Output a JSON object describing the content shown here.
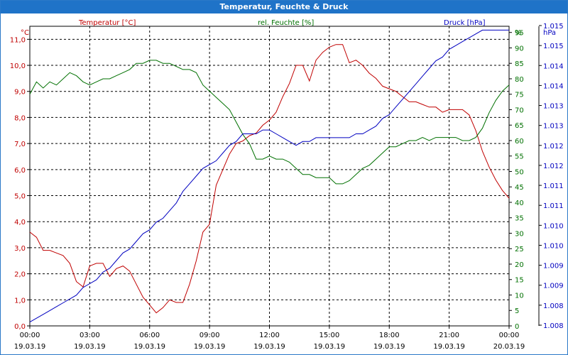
{
  "window": {
    "title": "Temperatur, Feuchte & Druck"
  },
  "colors": {
    "temperature": "#c00000",
    "humidity": "#007000",
    "pressure": "#0000c0",
    "grid": "#000000",
    "titlebar": "#1f73c8"
  },
  "chart_data": {
    "type": "line",
    "grid": true,
    "x_ticks": [
      {
        "time": "00:00",
        "date": "19.03.19"
      },
      {
        "time": "03:00",
        "date": "19.03.19"
      },
      {
        "time": "06:00",
        "date": "19.03.19"
      },
      {
        "time": "09:00",
        "date": "19.03.19"
      },
      {
        "time": "12:00",
        "date": "19.03.19"
      },
      {
        "time": "15:00",
        "date": "19.03.19"
      },
      {
        "time": "18:00",
        "date": "19.03.19"
      },
      {
        "time": "21:00",
        "date": "19.03.19"
      },
      {
        "time": "00:00",
        "date": "20.03.19"
      }
    ],
    "xlim": [
      "19.03.19 00:00",
      "20.03.19 00:00"
    ],
    "axes": {
      "temperature": {
        "unit": "°C",
        "ylim": [
          0,
          11.5
        ],
        "ticks": [
          "0,0",
          "1,0",
          "2,0",
          "3,0",
          "4,0",
          "5,0",
          "6,0",
          "7,0",
          "8,0",
          "9,0",
          "10,0",
          "11,0"
        ]
      },
      "humidity": {
        "unit": "%",
        "ylim": [
          0,
          97
        ],
        "ticks": [
          "0",
          "5",
          "10",
          "15",
          "20",
          "25",
          "30",
          "35",
          "40",
          "45",
          "50",
          "55",
          "60",
          "65",
          "70",
          "75",
          "80",
          "85",
          "90",
          "95"
        ]
      },
      "pressure": {
        "unit": "hPa",
        "ylim": [
          1007.8,
          1015.6
        ],
        "ticks": [
          "1.008",
          "1.008",
          "1.009",
          "1.009",
          "1.010",
          "1.010",
          "1.011",
          "1.011",
          "1.012",
          "1.012",
          "1.013",
          "1.013",
          "1.014",
          "1.014",
          "1.015",
          "1.015"
        ]
      }
    },
    "series": [
      {
        "name": "Temperatur [°C]",
        "axis": "temperature",
        "x": [
          "19.03.19 00:00",
          "19.03.19 00:20",
          "19.03.19 00:40",
          "19.03.19 01:00",
          "19.03.19 01:20",
          "19.03.19 01:40",
          "19.03.19 02:00",
          "19.03.19 02:20",
          "19.03.19 02:40",
          "19.03.19 03:00",
          "19.03.19 03:20",
          "19.03.19 03:40",
          "19.03.19 04:00",
          "19.03.19 04:20",
          "19.03.19 04:40",
          "19.03.19 05:00",
          "19.03.19 05:20",
          "19.03.19 05:40",
          "19.03.19 06:00",
          "19.03.19 06:20",
          "19.03.19 06:40",
          "19.03.19 07:00",
          "19.03.19 07:20",
          "19.03.19 07:40",
          "19.03.19 08:00",
          "19.03.19 08:20",
          "19.03.19 08:40",
          "19.03.19 09:00",
          "19.03.19 09:20",
          "19.03.19 09:40",
          "19.03.19 10:00",
          "19.03.19 10:20",
          "19.03.19 10:40",
          "19.03.19 11:00",
          "19.03.19 11:20",
          "19.03.19 11:40",
          "19.03.19 12:00",
          "19.03.19 12:20",
          "19.03.19 12:40",
          "19.03.19 13:00",
          "19.03.19 13:20",
          "19.03.19 13:40",
          "19.03.19 14:00",
          "19.03.19 14:20",
          "19.03.19 14:40",
          "19.03.19 15:00",
          "19.03.19 15:20",
          "19.03.19 15:40",
          "19.03.19 16:00",
          "19.03.19 16:20",
          "19.03.19 16:40",
          "19.03.19 17:00",
          "19.03.19 17:20",
          "19.03.19 17:40",
          "19.03.19 18:00",
          "19.03.19 18:20",
          "19.03.19 18:40",
          "19.03.19 19:00",
          "19.03.19 19:20",
          "19.03.19 19:40",
          "19.03.19 20:00",
          "19.03.19 20:20",
          "19.03.19 20:40",
          "19.03.19 21:00",
          "19.03.19 21:20",
          "19.03.19 21:40",
          "19.03.19 22:00",
          "19.03.19 22:20",
          "19.03.19 22:40",
          "19.03.19 23:00",
          "19.03.19 23:20",
          "19.03.19 23:40",
          "20.03.19 00:00"
        ],
        "values": [
          3.6,
          3.4,
          2.9,
          2.9,
          2.8,
          2.7,
          2.4,
          1.7,
          1.5,
          2.3,
          2.4,
          2.4,
          1.9,
          2.2,
          2.3,
          2.1,
          1.6,
          1.1,
          0.8,
          0.5,
          0.7,
          1.0,
          0.9,
          0.9,
          1.6,
          2.5,
          3.6,
          3.9,
          5.4,
          6.0,
          6.6,
          7.0,
          7.1,
          7.3,
          7.4,
          7.7,
          7.9,
          8.2,
          8.8,
          9.3,
          10.0,
          10.0,
          9.4,
          10.2,
          10.5,
          10.7,
          10.8,
          10.8,
          10.1,
          10.2,
          10.0,
          9.7,
          9.5,
          9.2,
          9.1,
          9.0,
          8.8,
          8.6,
          8.6,
          8.5,
          8.4,
          8.4,
          8.2,
          8.3,
          8.3,
          8.3,
          8.1,
          7.5,
          6.7,
          6.1,
          5.6,
          5.2,
          4.9
        ]
      },
      {
        "name": "rel. Feuchte [%]",
        "axis": "humidity",
        "x": [
          "19.03.19 00:00",
          "19.03.19 00:20",
          "19.03.19 00:40",
          "19.03.19 01:00",
          "19.03.19 01:20",
          "19.03.19 01:40",
          "19.03.19 02:00",
          "19.03.19 02:20",
          "19.03.19 02:40",
          "19.03.19 03:00",
          "19.03.19 03:20",
          "19.03.19 03:40",
          "19.03.19 04:00",
          "19.03.19 04:20",
          "19.03.19 04:40",
          "19.03.19 05:00",
          "19.03.19 05:20",
          "19.03.19 05:40",
          "19.03.19 06:00",
          "19.03.19 06:20",
          "19.03.19 06:40",
          "19.03.19 07:00",
          "19.03.19 07:20",
          "19.03.19 07:40",
          "19.03.19 08:00",
          "19.03.19 08:20",
          "19.03.19 08:40",
          "19.03.19 09:00",
          "19.03.19 09:20",
          "19.03.19 09:40",
          "19.03.19 10:00",
          "19.03.19 10:20",
          "19.03.19 10:40",
          "19.03.19 11:00",
          "19.03.19 11:20",
          "19.03.19 11:40",
          "19.03.19 12:00",
          "19.03.19 12:20",
          "19.03.19 12:40",
          "19.03.19 13:00",
          "19.03.19 13:20",
          "19.03.19 13:40",
          "19.03.19 14:00",
          "19.03.19 14:20",
          "19.03.19 14:40",
          "19.03.19 15:00",
          "19.03.19 15:20",
          "19.03.19 15:40",
          "19.03.19 16:00",
          "19.03.19 16:20",
          "19.03.19 16:40",
          "19.03.19 17:00",
          "19.03.19 17:20",
          "19.03.19 17:40",
          "19.03.19 18:00",
          "19.03.19 18:20",
          "19.03.19 18:40",
          "19.03.19 19:00",
          "19.03.19 19:20",
          "19.03.19 19:40",
          "19.03.19 20:00",
          "19.03.19 20:20",
          "19.03.19 20:40",
          "19.03.19 21:00",
          "19.03.19 21:20",
          "19.03.19 21:40",
          "19.03.19 22:00",
          "19.03.19 22:20",
          "19.03.19 22:40",
          "19.03.19 23:00",
          "19.03.19 23:20",
          "19.03.19 23:40",
          "20.03.19 00:00"
        ],
        "values": [
          75,
          79,
          77,
          79,
          78,
          80,
          82,
          81,
          79,
          78,
          79,
          80,
          80,
          81,
          82,
          83,
          85,
          85,
          86,
          86,
          85,
          85,
          84,
          83,
          83,
          82,
          78,
          76,
          74,
          72,
          70,
          66,
          62,
          59,
          54,
          54,
          55,
          54,
          54,
          53,
          51,
          49,
          49,
          48,
          48,
          48,
          46,
          46,
          47,
          49,
          51,
          52,
          54,
          56,
          58,
          58,
          59,
          60,
          60,
          61,
          60,
          61,
          61,
          61,
          61,
          60,
          60,
          61,
          64,
          69,
          73,
          76,
          78
        ]
      },
      {
        "name": "Druck [hPa]",
        "axis": "pressure",
        "x": [
          "19.03.19 00:00",
          "19.03.19 00:20",
          "19.03.19 00:40",
          "19.03.19 01:00",
          "19.03.19 01:20",
          "19.03.19 01:40",
          "19.03.19 02:00",
          "19.03.19 02:20",
          "19.03.19 02:40",
          "19.03.19 03:00",
          "19.03.19 03:20",
          "19.03.19 03:40",
          "19.03.19 04:00",
          "19.03.19 04:20",
          "19.03.19 04:40",
          "19.03.19 05:00",
          "19.03.19 05:20",
          "19.03.19 05:40",
          "19.03.19 06:00",
          "19.03.19 06:20",
          "19.03.19 06:40",
          "19.03.19 07:00",
          "19.03.19 07:20",
          "19.03.19 07:40",
          "19.03.19 08:00",
          "19.03.19 08:20",
          "19.03.19 08:40",
          "19.03.19 09:00",
          "19.03.19 09:20",
          "19.03.19 09:40",
          "19.03.19 10:00",
          "19.03.19 10:20",
          "19.03.19 10:40",
          "19.03.19 11:00",
          "19.03.19 11:20",
          "19.03.19 11:40",
          "19.03.19 12:00",
          "19.03.19 12:20",
          "19.03.19 12:40",
          "19.03.19 13:00",
          "19.03.19 13:20",
          "19.03.19 13:40",
          "19.03.19 14:00",
          "19.03.19 14:20",
          "19.03.19 14:40",
          "19.03.19 15:00",
          "19.03.19 15:20",
          "19.03.19 15:40",
          "19.03.19 16:00",
          "19.03.19 16:20",
          "19.03.19 16:40",
          "19.03.19 17:00",
          "19.03.19 17:20",
          "19.03.19 17:40",
          "19.03.19 18:00",
          "19.03.19 18:20",
          "19.03.19 18:40",
          "19.03.19 19:00",
          "19.03.19 19:20",
          "19.03.19 19:40",
          "19.03.19 20:00",
          "19.03.19 20:20",
          "19.03.19 20:40",
          "19.03.19 21:00",
          "19.03.19 21:20",
          "19.03.19 21:40",
          "19.03.19 22:00",
          "19.03.19 22:20",
          "19.03.19 22:40",
          "19.03.19 23:00",
          "19.03.19 23:20",
          "19.03.19 23:40",
          "20.03.19 00:00"
        ],
        "values": [
          1007.9,
          1008.0,
          1008.1,
          1008.2,
          1008.3,
          1008.4,
          1008.5,
          1008.6,
          1008.8,
          1008.9,
          1009.0,
          1009.2,
          1009.3,
          1009.5,
          1009.7,
          1009.8,
          1010.0,
          1010.2,
          1010.3,
          1010.5,
          1010.6,
          1010.8,
          1011.0,
          1011.3,
          1011.5,
          1011.7,
          1011.9,
          1012.0,
          1012.1,
          1012.3,
          1012.5,
          1012.6,
          1012.8,
          1012.8,
          1012.8,
          1012.9,
          1012.9,
          1012.8,
          1012.7,
          1012.6,
          1012.5,
          1012.6,
          1012.6,
          1012.7,
          1012.7,
          1012.7,
          1012.7,
          1012.7,
          1012.7,
          1012.8,
          1012.8,
          1012.9,
          1013.0,
          1013.2,
          1013.3,
          1013.5,
          1013.7,
          1013.9,
          1014.1,
          1014.3,
          1014.5,
          1014.7,
          1014.8,
          1015.0,
          1015.1,
          1015.2,
          1015.3,
          1015.4,
          1015.5,
          1015.5,
          1015.5,
          1015.5,
          1015.5
        ]
      }
    ]
  }
}
